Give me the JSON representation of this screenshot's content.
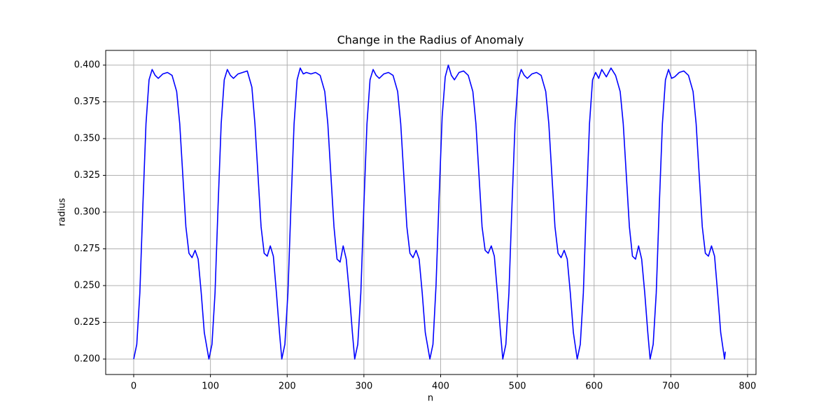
{
  "chart_data": {
    "type": "line",
    "title": "Change in the Radius of Anomaly",
    "x_label": "n",
    "y_label": "radius",
    "x": [
      0,
      4,
      8,
      12,
      16,
      20,
      24,
      28,
      32,
      38,
      44,
      50,
      56,
      60,
      64,
      68,
      72,
      76,
      80,
      84,
      88,
      92,
      98,
      102,
      106,
      110,
      114,
      118,
      122,
      126,
      130,
      136,
      142,
      148,
      154,
      158,
      162,
      166,
      170,
      174,
      178,
      182,
      186,
      190,
      193,
      197,
      201,
      205,
      209,
      213,
      217,
      221,
      225,
      231,
      237,
      243,
      249,
      253,
      257,
      261,
      265,
      269,
      273,
      277,
      281,
      285,
      288,
      292,
      296,
      300,
      304,
      308,
      312,
      316,
      320,
      326,
      332,
      338,
      344,
      348,
      352,
      356,
      360,
      364,
      368,
      372,
      376,
      380,
      386,
      390,
      394,
      398,
      402,
      406,
      410,
      414,
      418,
      424,
      430,
      436,
      442,
      446,
      450,
      454,
      458,
      462,
      466,
      470,
      474,
      478,
      481,
      485,
      489,
      493,
      497,
      501,
      505,
      509,
      513,
      519,
      525,
      531,
      537,
      541,
      545,
      549,
      553,
      557,
      561,
      565,
      569,
      573,
      578,
      582,
      586,
      590,
      594,
      598,
      602,
      606,
      610,
      616,
      622,
      628,
      634,
      638,
      642,
      646,
      650,
      654,
      658,
      662,
      666,
      670,
      673,
      677,
      681,
      685,
      689,
      693,
      697,
      701,
      705,
      711,
      717,
      723,
      729,
      733,
      737,
      741,
      745,
      749,
      753,
      757,
      761,
      765,
      770,
      771
    ],
    "series": [
      {
        "name": "radius",
        "color": "#0000ff",
        "values": [
          0.2,
          0.21,
          0.245,
          0.305,
          0.36,
          0.39,
          0.397,
          0.393,
          0.391,
          0.394,
          0.395,
          0.393,
          0.382,
          0.36,
          0.325,
          0.29,
          0.272,
          0.269,
          0.274,
          0.268,
          0.245,
          0.218,
          0.2,
          0.21,
          0.245,
          0.305,
          0.36,
          0.39,
          0.397,
          0.393,
          0.391,
          0.394,
          0.395,
          0.396,
          0.385,
          0.36,
          0.325,
          0.29,
          0.272,
          0.27,
          0.277,
          0.27,
          0.245,
          0.218,
          0.2,
          0.21,
          0.245,
          0.305,
          0.36,
          0.39,
          0.398,
          0.394,
          0.395,
          0.394,
          0.395,
          0.393,
          0.382,
          0.36,
          0.325,
          0.29,
          0.268,
          0.266,
          0.277,
          0.268,
          0.245,
          0.218,
          0.2,
          0.21,
          0.245,
          0.305,
          0.36,
          0.39,
          0.397,
          0.393,
          0.391,
          0.394,
          0.395,
          0.393,
          0.382,
          0.36,
          0.325,
          0.29,
          0.272,
          0.269,
          0.274,
          0.268,
          0.245,
          0.218,
          0.2,
          0.21,
          0.25,
          0.31,
          0.365,
          0.392,
          0.4,
          0.393,
          0.39,
          0.395,
          0.396,
          0.393,
          0.382,
          0.36,
          0.325,
          0.29,
          0.274,
          0.272,
          0.277,
          0.27,
          0.245,
          0.218,
          0.2,
          0.21,
          0.245,
          0.305,
          0.36,
          0.39,
          0.397,
          0.393,
          0.391,
          0.394,
          0.395,
          0.393,
          0.382,
          0.36,
          0.325,
          0.29,
          0.272,
          0.269,
          0.274,
          0.268,
          0.245,
          0.218,
          0.2,
          0.21,
          0.245,
          0.305,
          0.36,
          0.39,
          0.395,
          0.391,
          0.397,
          0.392,
          0.398,
          0.393,
          0.382,
          0.36,
          0.325,
          0.29,
          0.27,
          0.268,
          0.277,
          0.268,
          0.245,
          0.218,
          0.2,
          0.21,
          0.245,
          0.305,
          0.36,
          0.39,
          0.397,
          0.391,
          0.392,
          0.395,
          0.396,
          0.393,
          0.382,
          0.36,
          0.325,
          0.29,
          0.272,
          0.27,
          0.277,
          0.27,
          0.245,
          0.218,
          0.2,
          0.205
        ]
      }
    ],
    "xlim": [
      -36.5,
      811
    ],
    "ylim": [
      0.1895,
      0.41
    ],
    "xticks": [
      0,
      100,
      200,
      300,
      400,
      500,
      600,
      700,
      800
    ],
    "yticks": [
      {
        "value": 0.2,
        "label": "0.200"
      },
      {
        "value": 0.225,
        "label": "0.225"
      },
      {
        "value": 0.25,
        "label": "0.250"
      },
      {
        "value": 0.275,
        "label": "0.275"
      },
      {
        "value": 0.3,
        "label": "0.300"
      },
      {
        "value": 0.325,
        "label": "0.325"
      },
      {
        "value": 0.35,
        "label": "0.350"
      },
      {
        "value": 0.375,
        "label": "0.375"
      },
      {
        "value": 0.4,
        "label": "0.400"
      }
    ],
    "grid": true
  }
}
